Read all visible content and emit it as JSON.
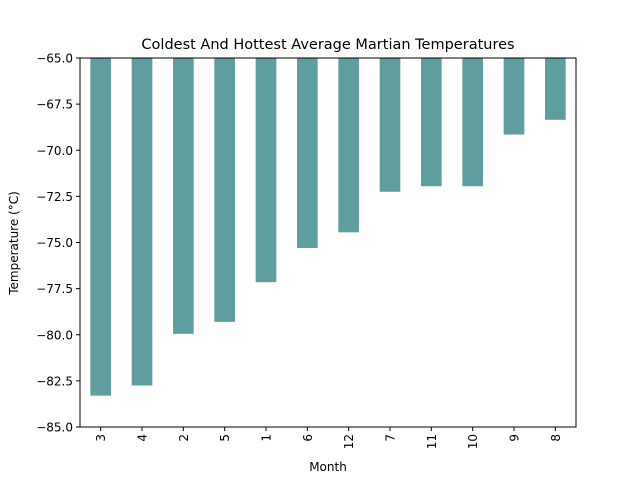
{
  "chart_data": {
    "type": "bar",
    "title": "Coldest And Hottest Average Martian Temperatures",
    "xlabel": "Month",
    "ylabel": "Temperature (°C)",
    "categories": [
      "3",
      "4",
      "2",
      "5",
      "1",
      "6",
      "12",
      "7",
      "11",
      "10",
      "9",
      "8"
    ],
    "values": [
      -83.3,
      -82.75,
      -79.95,
      -79.3,
      -77.15,
      -75.3,
      -74.45,
      -72.25,
      -71.95,
      -71.95,
      -69.15,
      -68.35
    ],
    "ylim": [
      -85,
      -65
    ],
    "yticks": [
      -65.0,
      -67.5,
      -70.0,
      -72.5,
      -75.0,
      -77.5,
      -80.0,
      -82.5,
      -85.0
    ],
    "ytick_labels": [
      "−65.0",
      "−67.5",
      "−70.0",
      "−72.5",
      "−75.0",
      "−77.5",
      "−80.0",
      "−82.5",
      "−85.0"
    ],
    "bar_color": "#5f9ea0",
    "grid": false,
    "legend": "none"
  }
}
